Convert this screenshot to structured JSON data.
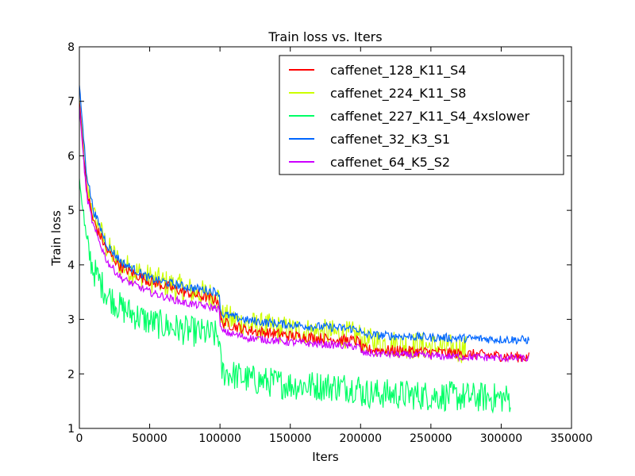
{
  "chart_data": {
    "type": "line",
    "title": "Train loss  vs. Iters",
    "xlabel": "Iters",
    "ylabel": "Train loss",
    "xlim": [
      0,
      350000
    ],
    "ylim": [
      1,
      8
    ],
    "xticks": [
      0,
      50000,
      100000,
      150000,
      200000,
      250000,
      300000,
      350000
    ],
    "yticks": [
      1,
      2,
      3,
      4,
      5,
      6,
      7,
      8
    ],
    "grid": false,
    "legend_position": "top-right",
    "series": [
      {
        "name": "caffenet_128_K11_S4",
        "color": "#ff0000",
        "x_end": 320000,
        "noise": 0.1,
        "points": [
          [
            0,
            7.0
          ],
          [
            5000,
            5.4
          ],
          [
            10000,
            4.8
          ],
          [
            20000,
            4.25
          ],
          [
            30000,
            3.95
          ],
          [
            50000,
            3.7
          ],
          [
            75000,
            3.5
          ],
          [
            99000,
            3.35
          ],
          [
            101000,
            2.95
          ],
          [
            120000,
            2.8
          ],
          [
            150000,
            2.7
          ],
          [
            199000,
            2.6
          ],
          [
            201000,
            2.45
          ],
          [
            250000,
            2.4
          ],
          [
            320000,
            2.3
          ]
        ]
      },
      {
        "name": "caffenet_224_K11_S8",
        "color": "#ccff00",
        "x_end": 275000,
        "noise": 0.26,
        "points": [
          [
            0,
            7.0
          ],
          [
            5000,
            5.5
          ],
          [
            10000,
            4.9
          ],
          [
            20000,
            4.3
          ],
          [
            30000,
            4.0
          ],
          [
            50000,
            3.75
          ],
          [
            75000,
            3.55
          ],
          [
            99000,
            3.4
          ],
          [
            101000,
            3.05
          ],
          [
            120000,
            2.9
          ],
          [
            150000,
            2.8
          ],
          [
            199000,
            2.7
          ],
          [
            201000,
            2.6
          ],
          [
            250000,
            2.5
          ],
          [
            275000,
            2.45
          ]
        ]
      },
      {
        "name": "caffenet_227_K11_S4_4xslower",
        "color": "#00ff66",
        "x_end": 307000,
        "noise": 0.28,
        "points": [
          [
            0,
            5.6
          ],
          [
            5000,
            4.4
          ],
          [
            10000,
            3.9
          ],
          [
            20000,
            3.45
          ],
          [
            30000,
            3.2
          ],
          [
            50000,
            2.95
          ],
          [
            75000,
            2.8
          ],
          [
            99000,
            2.7
          ],
          [
            101000,
            2.05
          ],
          [
            120000,
            1.9
          ],
          [
            150000,
            1.8
          ],
          [
            199000,
            1.75
          ],
          [
            201000,
            1.65
          ],
          [
            250000,
            1.6
          ],
          [
            307000,
            1.55
          ]
        ]
      },
      {
        "name": "caffenet_32_K3_S1",
        "color": "#0066ff",
        "x_end": 320000,
        "noise": 0.08,
        "points": [
          [
            0,
            7.3
          ],
          [
            5000,
            5.7
          ],
          [
            10000,
            5.0
          ],
          [
            20000,
            4.35
          ],
          [
            30000,
            4.05
          ],
          [
            50000,
            3.75
          ],
          [
            75000,
            3.6
          ],
          [
            99000,
            3.5
          ],
          [
            101000,
            3.1
          ],
          [
            120000,
            2.98
          ],
          [
            150000,
            2.9
          ],
          [
            199000,
            2.82
          ],
          [
            201000,
            2.72
          ],
          [
            250000,
            2.67
          ],
          [
            320000,
            2.62
          ]
        ]
      },
      {
        "name": "caffenet_64_K5_S2",
        "color": "#cc00ff",
        "x_end": 320000,
        "noise": 0.07,
        "points": [
          [
            0,
            6.9
          ],
          [
            5000,
            5.3
          ],
          [
            10000,
            4.7
          ],
          [
            20000,
            4.05
          ],
          [
            30000,
            3.75
          ],
          [
            50000,
            3.5
          ],
          [
            75000,
            3.3
          ],
          [
            99000,
            3.2
          ],
          [
            101000,
            2.78
          ],
          [
            120000,
            2.66
          ],
          [
            150000,
            2.58
          ],
          [
            199000,
            2.5
          ],
          [
            201000,
            2.38
          ],
          [
            250000,
            2.33
          ],
          [
            320000,
            2.28
          ]
        ]
      }
    ]
  }
}
